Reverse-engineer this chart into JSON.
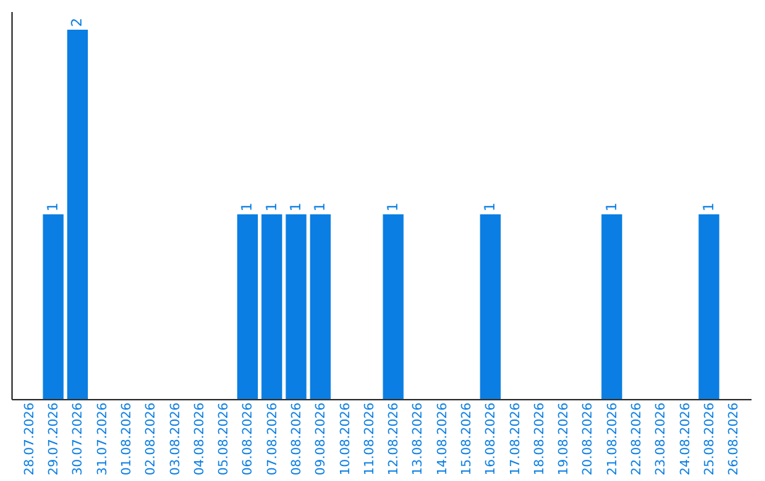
{
  "chart_data": {
    "type": "bar",
    "categories": [
      "28.07.2026",
      "29.07.2026",
      "30.07.2026",
      "31.07.2026",
      "01.08.2026",
      "02.08.2026",
      "03.08.2026",
      "04.08.2026",
      "05.08.2026",
      "06.08.2026",
      "07.08.2026",
      "08.08.2026",
      "09.08.2026",
      "10.08.2026",
      "11.08.2026",
      "12.08.2026",
      "13.08.2026",
      "14.08.2026",
      "15.08.2026",
      "16.08.2026",
      "17.08.2026",
      "18.08.2026",
      "19.08.2026",
      "20.08.2026",
      "21.08.2026",
      "22.08.2026",
      "23.08.2026",
      "24.08.2026",
      "25.08.2026",
      "26.08.2026"
    ],
    "values": [
      0,
      1,
      2,
      0,
      0,
      0,
      0,
      0,
      0,
      1,
      1,
      1,
      1,
      0,
      0,
      1,
      0,
      0,
      0,
      1,
      0,
      0,
      0,
      0,
      1,
      0,
      0,
      0,
      1,
      0
    ],
    "value_labels": [
      null,
      "1",
      "2",
      null,
      null,
      null,
      null,
      null,
      null,
      "1",
      "1",
      "1",
      "1",
      null,
      null,
      "1",
      null,
      null,
      null,
      "1",
      null,
      null,
      null,
      null,
      "1",
      null,
      null,
      null,
      "1",
      null
    ],
    "color": "#0a7ee2",
    "tick_labels": "x"
  }
}
